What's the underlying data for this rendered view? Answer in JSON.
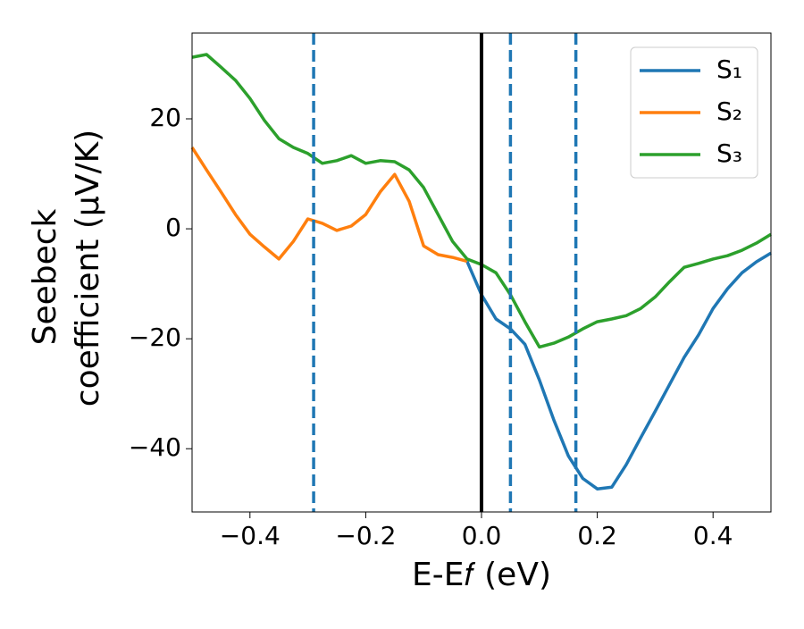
{
  "chart_data": {
    "type": "line",
    "x_label": "E-E𝑓 (eV)",
    "y_label": [
      "Seebeck",
      "coefficient  (μV/K)"
    ],
    "x": [
      -0.5,
      -0.475,
      -0.45,
      -0.425,
      -0.4,
      -0.375,
      -0.35,
      -0.325,
      -0.3,
      -0.275,
      -0.25,
      -0.225,
      -0.2,
      -0.175,
      -0.15,
      -0.125,
      -0.1,
      -0.075,
      -0.05,
      -0.025,
      0,
      0.025,
      0.05,
      0.075,
      0.1,
      0.125,
      0.15,
      0.175,
      0.2,
      0.225,
      0.25,
      0.275,
      0.3,
      0.325,
      0.35,
      0.375,
      0.4,
      0.425,
      0.45,
      0.475,
      0.5
    ],
    "series": [
      {
        "name": "S₁",
        "color": "#1f77b4",
        "values": [
          null,
          null,
          null,
          null,
          null,
          null,
          null,
          null,
          null,
          null,
          null,
          null,
          null,
          null,
          null,
          null,
          null,
          null,
          null,
          -5.9,
          -12,
          -16.4,
          -18.2,
          -21,
          -27.5,
          -34.8,
          -41.3,
          -45.4,
          -47.3,
          -47,
          -42.9,
          -38,
          -33.2,
          -28.3,
          -23.4,
          -19.3,
          -14.5,
          -10.9,
          -8,
          -6,
          -4.4
        ]
      },
      {
        "name": "S₂",
        "color": "#ff7f0e",
        "values": [
          14.8,
          10.7,
          6.7,
          2.6,
          -1,
          -3.3,
          -5.5,
          -2.3,
          1.8,
          1,
          -0.3,
          0.5,
          2.6,
          6.7,
          9.9,
          5,
          -3.1,
          -4.7,
          -5.2,
          -5.9,
          null,
          null,
          null,
          null,
          null,
          null,
          null,
          null,
          null,
          null,
          null,
          null,
          null,
          null,
          null,
          null,
          null,
          null,
          null,
          null,
          null
        ]
      },
      {
        "name": "S₃",
        "color": "#2ca02c",
        "values": [
          31.2,
          31.7,
          29.4,
          27,
          23.7,
          19.7,
          16.4,
          14.8,
          13.7,
          11.9,
          12.4,
          13.3,
          11.9,
          12.4,
          12.2,
          10.7,
          7.5,
          2.6,
          -2.3,
          -5.5,
          -6.5,
          -8,
          -12,
          -16.9,
          -21.5,
          -20.8,
          -19.7,
          -18.2,
          -16.9,
          -16.4,
          -15.8,
          -14.5,
          -12.4,
          -9.6,
          -7,
          -6.3,
          -5.5,
          -4.9,
          -3.9,
          -2.6,
          -1
        ]
      }
    ],
    "vlines": [
      {
        "x": 0,
        "color": "#000000",
        "dashed": false
      },
      {
        "x": -0.29,
        "color": "#1f77b4",
        "dashed": true
      },
      {
        "x": 0.05,
        "color": "#1f77b4",
        "dashed": true
      },
      {
        "x": 0.163,
        "color": "#1f77b4",
        "dashed": true
      }
    ],
    "xlim": [
      -0.5,
      0.5
    ],
    "ylim": [
      -51.5,
      35.6
    ],
    "xticks": [
      {
        "value": -0.4,
        "label": "−0.4"
      },
      {
        "value": -0.2,
        "label": "−0.2"
      },
      {
        "value": 0,
        "label": "0.0"
      },
      {
        "value": 0.2,
        "label": "0.2"
      },
      {
        "value": 0.4,
        "label": "0.4"
      }
    ],
    "yticks": [
      {
        "value": -40,
        "label": "−40"
      },
      {
        "value": -20,
        "label": "−20"
      },
      0,
      20
    ],
    "legend": "upper right"
  }
}
